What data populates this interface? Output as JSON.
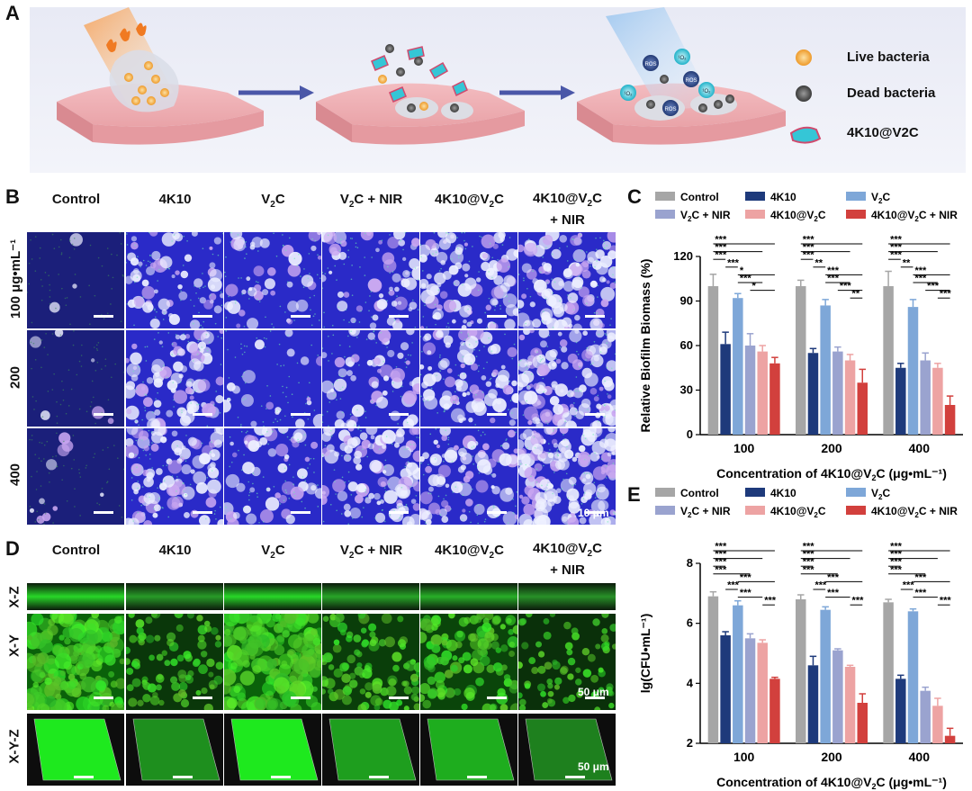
{
  "panel_labels": {
    "a": "A",
    "b": "B",
    "c": "C",
    "d": "D",
    "e": "E"
  },
  "panel_a": {
    "legend": [
      {
        "label": "Live bacteria",
        "icon": "live-bacteria-icon",
        "color": "#f3a83a"
      },
      {
        "label": "Dead bacteria",
        "icon": "dead-bacteria-icon",
        "color": "#6b6b6b"
      },
      {
        "label": "4K10@V2C",
        "icon": "nanosheet-icon",
        "color": "#35c6d6"
      }
    ],
    "ros_labels": [
      "ROS",
      "¹O₂"
    ]
  },
  "panel_b": {
    "columns": [
      "Control",
      "4K10",
      "V2C",
      "V2C + NIR",
      "4K10@V2C",
      "4K10@V2C\n+ NIR"
    ],
    "rows": [
      "100 μg•mL⁻¹",
      "200",
      "400"
    ],
    "scale_bar": "10 μm"
  },
  "panel_d": {
    "columns": [
      "Control",
      "4K10",
      "V2C",
      "V2C + NIR",
      "4K10@V2C",
      "4K10@V2C\n+ NIR"
    ],
    "rows": [
      "X-Z",
      "X-Y",
      "X-Y-Z"
    ],
    "scale_bar_xy": "50 μm",
    "scale_bar_xyz": "50 μm"
  },
  "chart_data": [
    {
      "type": "bar",
      "panel": "C",
      "categories": [
        "100",
        "200",
        "400"
      ],
      "xlabel": "Concentration of 4K10@V2C (μg•mL⁻¹)",
      "ylabel": "Relative Biofilm Biomass (%)",
      "ylim": [
        0,
        120
      ],
      "yticks": [
        0,
        30,
        60,
        90,
        120
      ],
      "legend_position": "top",
      "series": [
        {
          "name": "Control",
          "color": "#a6a6a6",
          "values": [
            100,
            100,
            100
          ],
          "errors": [
            8,
            4,
            10
          ]
        },
        {
          "name": "4K10",
          "color": "#1e3a7b",
          "values": [
            61,
            55,
            45
          ],
          "errors": [
            8,
            3,
            3
          ]
        },
        {
          "name": "V2C",
          "color": "#7ea7d8",
          "values": [
            92,
            87,
            86
          ],
          "errors": [
            3,
            4,
            5
          ]
        },
        {
          "name": "V2C + NIR",
          "color": "#9aa3cf",
          "values": [
            60,
            56,
            50
          ],
          "errors": [
            8,
            3,
            5
          ]
        },
        {
          "name": "4K10@V2C",
          "color": "#eda3a3",
          "values": [
            56,
            50,
            45
          ],
          "errors": [
            4,
            4,
            3
          ]
        },
        {
          "name": "4K10@V2C + NIR",
          "color": "#d2403d",
          "values": [
            48,
            35,
            20
          ],
          "errors": [
            4,
            9,
            6
          ]
        }
      ],
      "significance": [
        [
          "***",
          "***",
          "***",
          "***",
          "*",
          "***",
          "*"
        ],
        [
          "***",
          "***",
          "***",
          "**",
          "***",
          "***",
          "***",
          "**"
        ],
        [
          "***",
          "***",
          "***",
          "**",
          "***",
          "***",
          "***",
          "***"
        ]
      ]
    },
    {
      "type": "bar",
      "panel": "E",
      "categories": [
        "100",
        "200",
        "400"
      ],
      "xlabel": "Concentration of 4K10@V2C (μg•mL⁻¹)",
      "ylabel": "lg(CFU•mL⁻¹)",
      "ylim": [
        2,
        8
      ],
      "yticks": [
        2,
        4,
        6,
        8
      ],
      "legend_position": "top",
      "series": [
        {
          "name": "Control",
          "color": "#a6a6a6",
          "values": [
            6.9,
            6.8,
            6.7
          ],
          "errors": [
            0.15,
            0.15,
            0.1
          ]
        },
        {
          "name": "4K10",
          "color": "#1e3a7b",
          "values": [
            5.6,
            4.6,
            4.15
          ],
          "errors": [
            0.12,
            0.3,
            0.12
          ]
        },
        {
          "name": "V2C",
          "color": "#7ea7d8",
          "values": [
            6.6,
            6.45,
            6.4
          ],
          "errors": [
            0.15,
            0.1,
            0.08
          ]
        },
        {
          "name": "V2C + NIR",
          "color": "#9aa3cf",
          "values": [
            5.5,
            5.1,
            3.75
          ],
          "errors": [
            0.15,
            0.05,
            0.12
          ]
        },
        {
          "name": "4K10@V2C",
          "color": "#eda3a3",
          "values": [
            5.35,
            4.55,
            3.25
          ],
          "errors": [
            0.1,
            0.05,
            0.25
          ]
        },
        {
          "name": "4K10@V2C + NIR",
          "color": "#d2403d",
          "values": [
            4.15,
            3.35,
            2.25
          ],
          "errors": [
            0.05,
            0.3,
            0.25
          ]
        }
      ],
      "significance": [
        [
          "***",
          "***",
          "***",
          "***",
          "***",
          "***",
          "***",
          "***"
        ],
        [
          "***",
          "***",
          "***",
          "***",
          "***",
          "***",
          "***",
          "***"
        ],
        [
          "***",
          "***",
          "***",
          "***",
          "***",
          "***",
          "***",
          "***"
        ]
      ]
    }
  ]
}
